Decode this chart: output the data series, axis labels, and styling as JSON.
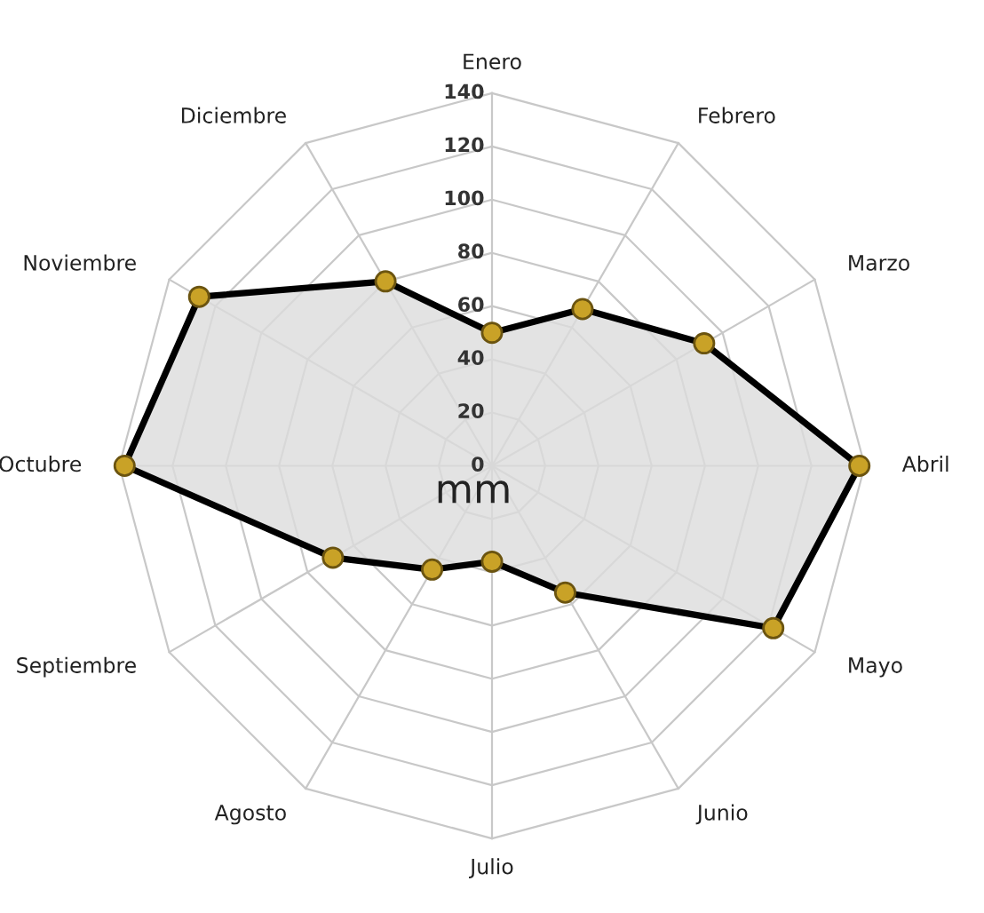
{
  "chart_data": {
    "type": "radar",
    "categories": [
      "Enero",
      "Febrero",
      "Marzo",
      "Abril",
      "Mayo",
      "Junio",
      "Julio",
      "Agosto",
      "Septiembre",
      "Octubre",
      "Noviembre",
      "Diciembre"
    ],
    "series": [
      {
        "color": "#000000",
        "values": [
          50,
          68,
          92,
          138,
          122,
          55,
          36,
          45,
          69,
          138,
          127,
          80
        ]
      }
    ],
    "marker": "circle",
    "ylim": [
      0,
      140
    ],
    "yticks": [
      0,
      20,
      40,
      60,
      80,
      100,
      120,
      140
    ],
    "grid": true,
    "annotations": [
      "mm"
    ]
  }
}
